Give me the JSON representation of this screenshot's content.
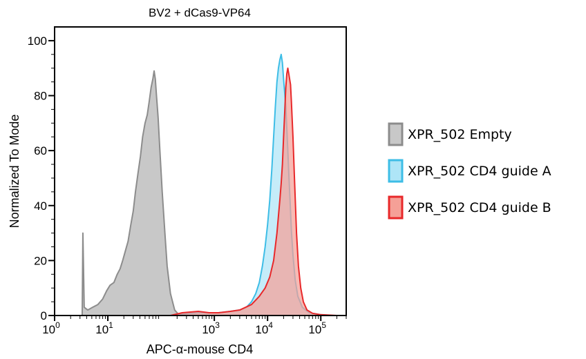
{
  "chart_data": {
    "type": "area",
    "title": "BV2 + dCas9-VP64",
    "xlabel": "APC-α-mouse CD4",
    "ylabel": "Normalized To Mode",
    "x_scale": "log10",
    "xlim": [
      1,
      300000
    ],
    "ylim": [
      0,
      105
    ],
    "y_ticks": [
      "0",
      "20",
      "40",
      "60",
      "80",
      "100"
    ],
    "x_ticks": [
      {
        "base": "10",
        "exp": "0"
      },
      {
        "base": "10",
        "exp": "1"
      },
      {
        "base": "10",
        "exp": "3"
      },
      {
        "base": "10",
        "exp": "4"
      },
      {
        "base": "10",
        "exp": "5"
      }
    ],
    "legend_position": "right",
    "series": [
      {
        "name": "XPR_502 Empty",
        "fill": "#c8c8c8",
        "stroke": "#8c8c8c",
        "points": [
          [
            3.3,
            0
          ],
          [
            3.4,
            30
          ],
          [
            3.6,
            3
          ],
          [
            4.2,
            2
          ],
          [
            5.2,
            3
          ],
          [
            6.5,
            4
          ],
          [
            8.0,
            6
          ],
          [
            9.5,
            9
          ],
          [
            11,
            11
          ],
          [
            13,
            12
          ],
          [
            15,
            15
          ],
          [
            17,
            17
          ],
          [
            19,
            20
          ],
          [
            21,
            23
          ],
          [
            24,
            27
          ],
          [
            27,
            33
          ],
          [
            30,
            38
          ],
          [
            33,
            45
          ],
          [
            37,
            52
          ],
          [
            41,
            58
          ],
          [
            45,
            65
          ],
          [
            50,
            70
          ],
          [
            55,
            73
          ],
          [
            60,
            78
          ],
          [
            65,
            83
          ],
          [
            70,
            86
          ],
          [
            74,
            89
          ],
          [
            78,
            86
          ],
          [
            82,
            80
          ],
          [
            88,
            72
          ],
          [
            95,
            60
          ],
          [
            105,
            45
          ],
          [
            118,
            30
          ],
          [
            130,
            18
          ],
          [
            150,
            8
          ],
          [
            180,
            2
          ],
          [
            200,
            1
          ],
          [
            210,
            0.5
          ],
          [
            240,
            0.3
          ],
          [
            300,
            0
          ]
        ]
      },
      {
        "name": "XPR_502 CD4 guide A",
        "fill": "#aee5f7",
        "stroke": "#3dbde6",
        "points": [
          [
            150,
            0
          ],
          [
            250,
            0.5
          ],
          [
            500,
            1
          ],
          [
            800,
            1
          ],
          [
            1200,
            1
          ],
          [
            2000,
            1.5
          ],
          [
            3000,
            2
          ],
          [
            4000,
            3
          ],
          [
            5000,
            5
          ],
          [
            6000,
            8
          ],
          [
            7000,
            12
          ],
          [
            8000,
            18
          ],
          [
            9000,
            25
          ],
          [
            10000,
            33
          ],
          [
            11000,
            42
          ],
          [
            12000,
            53
          ],
          [
            13000,
            65
          ],
          [
            14000,
            76
          ],
          [
            15000,
            85
          ],
          [
            16000,
            90
          ],
          [
            17000,
            93
          ],
          [
            18000,
            95
          ],
          [
            19000,
            92
          ],
          [
            20000,
            86
          ],
          [
            22000,
            76
          ],
          [
            23000,
            68
          ],
          [
            24000,
            60
          ],
          [
            25000,
            52
          ],
          [
            26000,
            45
          ],
          [
            27000,
            38
          ],
          [
            28000,
            31
          ],
          [
            30000,
            22
          ],
          [
            33000,
            13
          ],
          [
            37000,
            7
          ],
          [
            45000,
            3
          ],
          [
            60000,
            1
          ],
          [
            100000,
            0.3
          ],
          [
            150000,
            0
          ]
        ]
      },
      {
        "name": "XPR_502 CD4 guide B",
        "fill": "#f5a097",
        "stroke": "#e8282a",
        "points": [
          [
            150,
            0
          ],
          [
            250,
            1
          ],
          [
            500,
            1.5
          ],
          [
            800,
            1
          ],
          [
            1200,
            1
          ],
          [
            2000,
            1.5
          ],
          [
            3000,
            2
          ],
          [
            5000,
            4
          ],
          [
            7000,
            7
          ],
          [
            9000,
            10
          ],
          [
            11000,
            14
          ],
          [
            13000,
            20
          ],
          [
            15000,
            30
          ],
          [
            17000,
            42
          ],
          [
            18000,
            48
          ],
          [
            19000,
            55
          ],
          [
            20000,
            65
          ],
          [
            21000,
            74
          ],
          [
            22000,
            83
          ],
          [
            23000,
            88
          ],
          [
            24000,
            90
          ],
          [
            25000,
            88
          ],
          [
            27000,
            84
          ],
          [
            28000,
            78
          ],
          [
            30000,
            65
          ],
          [
            32000,
            50
          ],
          [
            35000,
            30
          ],
          [
            38000,
            18
          ],
          [
            42000,
            10
          ],
          [
            47000,
            5
          ],
          [
            55000,
            2
          ],
          [
            70000,
            0.8
          ],
          [
            100000,
            0.3
          ],
          [
            200000,
            0
          ]
        ]
      }
    ]
  }
}
